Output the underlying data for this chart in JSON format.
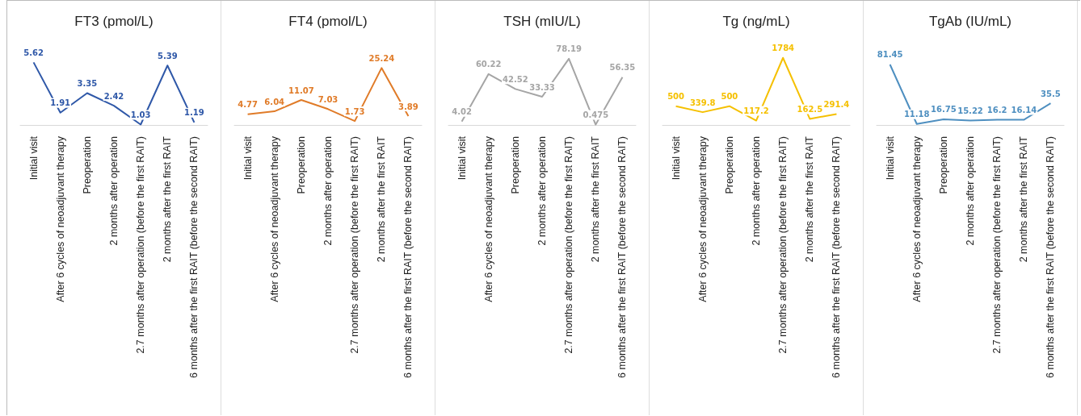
{
  "chart_data": [
    {
      "type": "line",
      "title": "FT3 (pmol/L)",
      "categories": [
        "Initial visit",
        "After 6 cycles of neoadjuvant therapy",
        "Preoperation",
        "2 months after operation",
        "2.7 months after operation (before the first RAIT)",
        "2 months after the first RAIT",
        "6 months after the first RAIT (before the second RAIT)"
      ],
      "series": [
        {
          "color": "#2f58a8",
          "values": [
            5.62,
            1.91,
            3.35,
            2.42,
            1.03,
            5.39,
            1.19
          ]
        }
      ],
      "data_labels": true,
      "marker": "none",
      "grid": false
    },
    {
      "type": "line",
      "title": "FT4 (pmol/L)",
      "categories": [
        "Initial visit",
        "After 6 cycles of neoadjuvant therapy",
        "Preoperation",
        "2 months after operation",
        "2.7 months after operation (before the first RAIT)",
        "2 months after the first RAIT",
        "6 months after the first RAIT (before the second RAIT)"
      ],
      "series": [
        {
          "color": "#e07b28",
          "values": [
            4.77,
            6.04,
            11.07,
            7.03,
            1.73,
            25.24,
            3.89
          ]
        }
      ],
      "data_labels": true,
      "marker": "none",
      "grid": false
    },
    {
      "type": "line",
      "title": "TSH (mIU/L)",
      "categories": [
        "Initial visit",
        "After 6 cycles of neoadjuvant therapy",
        "Preoperation",
        "2 months after operation",
        "2.7 months after operation (before the first RAIT)",
        "2 months after the first RAIT",
        "6 months after the first RAIT (before the second RAIT)"
      ],
      "series": [
        {
          "color": "#a5a5a5",
          "values": [
            4.02,
            60.22,
            42.52,
            33.33,
            78.19,
            0.475,
            56.35
          ]
        }
      ],
      "data_labels": true,
      "marker": "none",
      "grid": false
    },
    {
      "type": "line",
      "title": "Tg (ng/mL)",
      "categories": [
        "Initial visit",
        "After 6 cycles of neoadjuvant therapy",
        "Preoperation",
        "2 months after operation",
        "2.7 months after operation (before the first RAIT)",
        "2 months after the first RAIT",
        "6 months after the first RAIT (before the second RAIT)"
      ],
      "series": [
        {
          "color": "#f5c000",
          "values": [
            500,
            339.8,
            500,
            117.2,
            1784,
            162.5,
            291.4
          ]
        }
      ],
      "data_labels": true,
      "marker": "none",
      "grid": false
    },
    {
      "type": "line",
      "title": "TgAb (IU/mL)",
      "categories": [
        "Initial visit",
        "After 6 cycles of neoadjuvant therapy",
        "Preoperation",
        "2 months after operation",
        "2.7 months after operation (before the first RAIT)",
        "2 months after the first RAIT",
        "6 months after the first RAIT (before the second RAIT)"
      ],
      "series": [
        {
          "color": "#4e8fc0",
          "values": [
            81.45,
            11.18,
            16.75,
            15.22,
            16.2,
            16.14,
            35.5
          ]
        }
      ],
      "data_labels": true,
      "marker": "none",
      "grid": false
    }
  ]
}
